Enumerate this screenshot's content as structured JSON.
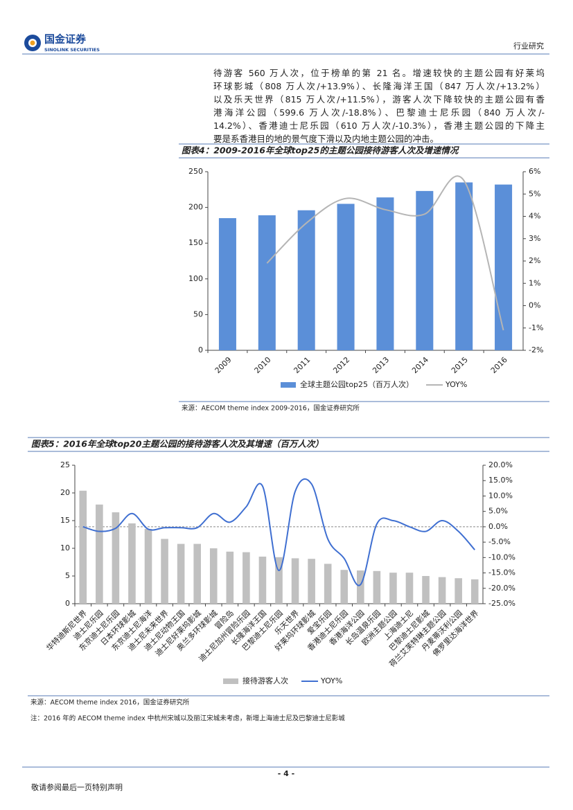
{
  "header": {
    "logo_cn": "国金证券",
    "logo_en": "SINOLINK SECURITIES",
    "section": "行业研究"
  },
  "paragraph": [
    "待游客 560 万人次，位于榜单的第 21 名。增速较快的主题公园有好莱坞",
    "环球影城（808 万人次/+13.9%）、长隆海洋王国（847 万人次/+13.2%）",
    "以及乐天世界（815 万人次/+11.5%），游客人次下降较快的主题公园有香",
    "港海洋公园（599.6 万人次/-18.8%）、巴黎迪士尼乐园（840 万人次/-",
    "14.2%）、香港迪士尼乐园（610 万人次/-10.3%），香港主题公园的下降主",
    "要是系香港目的地的景气度下滑以及内地主题公园的冲击。"
  ],
  "chart_data": [
    {
      "type": "bar",
      "title": "图表4：2009-2016年全球top25的主题公园接待游客人次及增速情况",
      "categories": [
        "2009",
        "2010",
        "2011",
        "2012",
        "2013",
        "2014",
        "2015",
        "2016"
      ],
      "series": [
        {
          "name": "全球主题公园top25（百万人次）",
          "type": "bar",
          "color": "#5b8fd8",
          "values": [
            185,
            189,
            196,
            205,
            214,
            223,
            235,
            232
          ]
        },
        {
          "name": "YOY%",
          "type": "line",
          "axis": "y2",
          "color": "#b5b5b5",
          "values": [
            null,
            1.9,
            3.7,
            4.8,
            4.3,
            4.1,
            5.6,
            -1.1
          ]
        }
      ],
      "ylim": [
        0,
        250
      ],
      "yticks": [
        0,
        50,
        100,
        150,
        200,
        250
      ],
      "y2lim": [
        -2,
        6
      ],
      "y2ticks": [
        {
          "value": -2,
          "label": "-2%"
        },
        {
          "value": -1,
          "label": "-1%"
        },
        {
          "value": 0,
          "label": "0%"
        },
        {
          "value": 1,
          "label": "1%"
        },
        {
          "value": 2,
          "label": "2%"
        },
        {
          "value": 3,
          "label": "3%"
        },
        {
          "value": 4,
          "label": "4%"
        },
        {
          "value": 5,
          "label": "5%"
        },
        {
          "value": 6,
          "label": "6%"
        }
      ],
      "source": "来源：AECOM theme index 2009-2016，国金证券研究所"
    },
    {
      "type": "bar",
      "title": "图表5：2016年全球top20主题公园的接待游客人次及其增速（百万人次）",
      "categories": [
        "华特迪斯尼世界",
        "迪士尼乐园",
        "东京迪士尼乐园",
        "日本环球影城",
        "东京迪士尼海洋",
        "迪士尼未来世界",
        "迪士尼动物王国",
        "迪士尼好莱坞影城",
        "奥兰多环球影城",
        "冒险岛",
        "迪士尼加州冒险乐园",
        "长隆海洋王国",
        "巴黎迪士尼乐园",
        "乐天世界",
        "好莱坞环球影城",
        "爱宝乐园",
        "香港迪士尼乐园",
        "香港海洋公园",
        "长岛温泉乐园",
        "欧洲主题公园",
        "上海迪士尼",
        "巴黎迪士尼影城",
        "荷兰艾芙特琳主题公园",
        "丹麦蒂沃利公园",
        "佛罗里达海洋世界"
      ],
      "series": [
        {
          "name": "接待游客人次",
          "type": "bar",
          "color": "#c0c0c0",
          "values": [
            20.4,
            17.9,
            16.5,
            14.5,
            13.5,
            11.7,
            10.8,
            10.8,
            10.0,
            9.4,
            9.3,
            8.5,
            8.4,
            8.2,
            8.1,
            7.2,
            6.1,
            6.0,
            5.9,
            5.6,
            5.6,
            5.0,
            4.8,
            4.6,
            4.4
          ]
        },
        {
          "name": "YOY%",
          "type": "line",
          "axis": "y2",
          "color": "#3f6fd1",
          "values": [
            0.0,
            -1.5,
            -0.5,
            4.3,
            -0.8,
            -0.3,
            -0.3,
            -0.3,
            4.3,
            1.5,
            6.5,
            13.2,
            -14.2,
            11.5,
            13.9,
            -4.0,
            -10.3,
            -18.8,
            0.9,
            2.0,
            0.0,
            -1.5,
            2.0,
            -1.5,
            -7.5
          ]
        }
      ],
      "ylim": [
        0,
        25
      ],
      "yticks": [
        0,
        5,
        10,
        15,
        20,
        25
      ],
      "y2lim": [
        -25,
        20
      ],
      "y2ticks": [
        {
          "value": -25,
          "label": "-25.0%"
        },
        {
          "value": -20,
          "label": "-20.0%"
        },
        {
          "value": -15,
          "label": "-15.0%"
        },
        {
          "value": -10,
          "label": "-10.0%"
        },
        {
          "value": -5,
          "label": "-5.0%"
        },
        {
          "value": 0,
          "label": "0.0%"
        },
        {
          "value": 5,
          "label": "5.0%"
        },
        {
          "value": 10,
          "label": "10.0%"
        },
        {
          "value": 15,
          "label": "15.0%"
        },
        {
          "value": 20,
          "label": "20.0%"
        }
      ],
      "source": "来源：AECOM theme index 2016，国金证券研究所",
      "note": "注：2016 年的 AECOM theme index 中杭州宋城以及丽江宋城未考虑，新增上海迪士尼及巴黎迪士尼影城"
    }
  ],
  "footer": {
    "page": "- 4 -",
    "disclaimer": "敬请参阅最后一页特别声明"
  }
}
